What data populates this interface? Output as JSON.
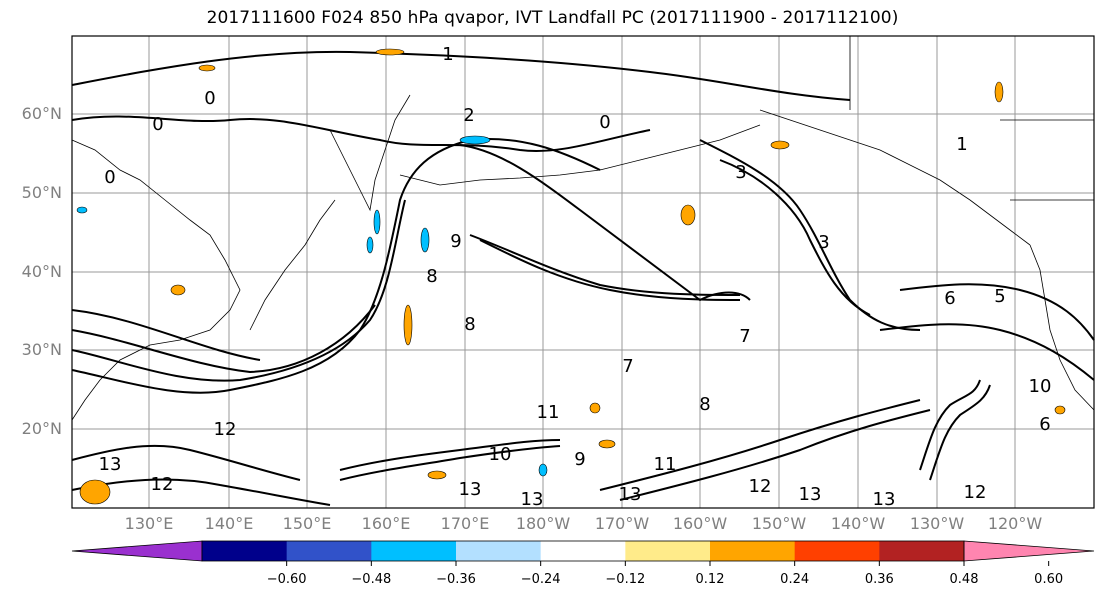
{
  "title": "2017111600 F024 850 hPa qvapor, IVT Landfall PC (2017111900 - 2017112100)",
  "lat_labels": [
    "60°N",
    "50°N",
    "40°N",
    "30°N",
    "20°N"
  ],
  "lon_labels": [
    "130°E",
    "140°E",
    "150°E",
    "160°E",
    "170°E",
    "180°W",
    "170°W",
    "160°W",
    "150°W",
    "140°W",
    "130°W",
    "120°W"
  ],
  "colorbar": {
    "colors": [
      "#9a30cf",
      "#00008b",
      "#3152c9",
      "#00bfff",
      "#b3e0ff",
      "#ffffff",
      "#ffeb8a",
      "#ffa500",
      "#ff4000",
      "#b22222",
      "#ff85b0"
    ],
    "tick_labels": [
      "−0.60",
      "−0.48",
      "−0.36",
      "−0.24",
      "−0.12",
      "0.12",
      "0.24",
      "0.36",
      "0.48",
      "0.60"
    ]
  },
  "contour_labels": [
    "1",
    "1",
    "0",
    "0",
    "0",
    "0",
    "2",
    "3",
    "3",
    "6",
    "9",
    "8",
    "8",
    "11",
    "12",
    "13",
    "12",
    "13",
    "11",
    "9",
    "13",
    "10",
    "12",
    "13",
    "13",
    "12",
    "8",
    "7",
    "5",
    "6",
    "7",
    "10",
    "13"
  ]
}
